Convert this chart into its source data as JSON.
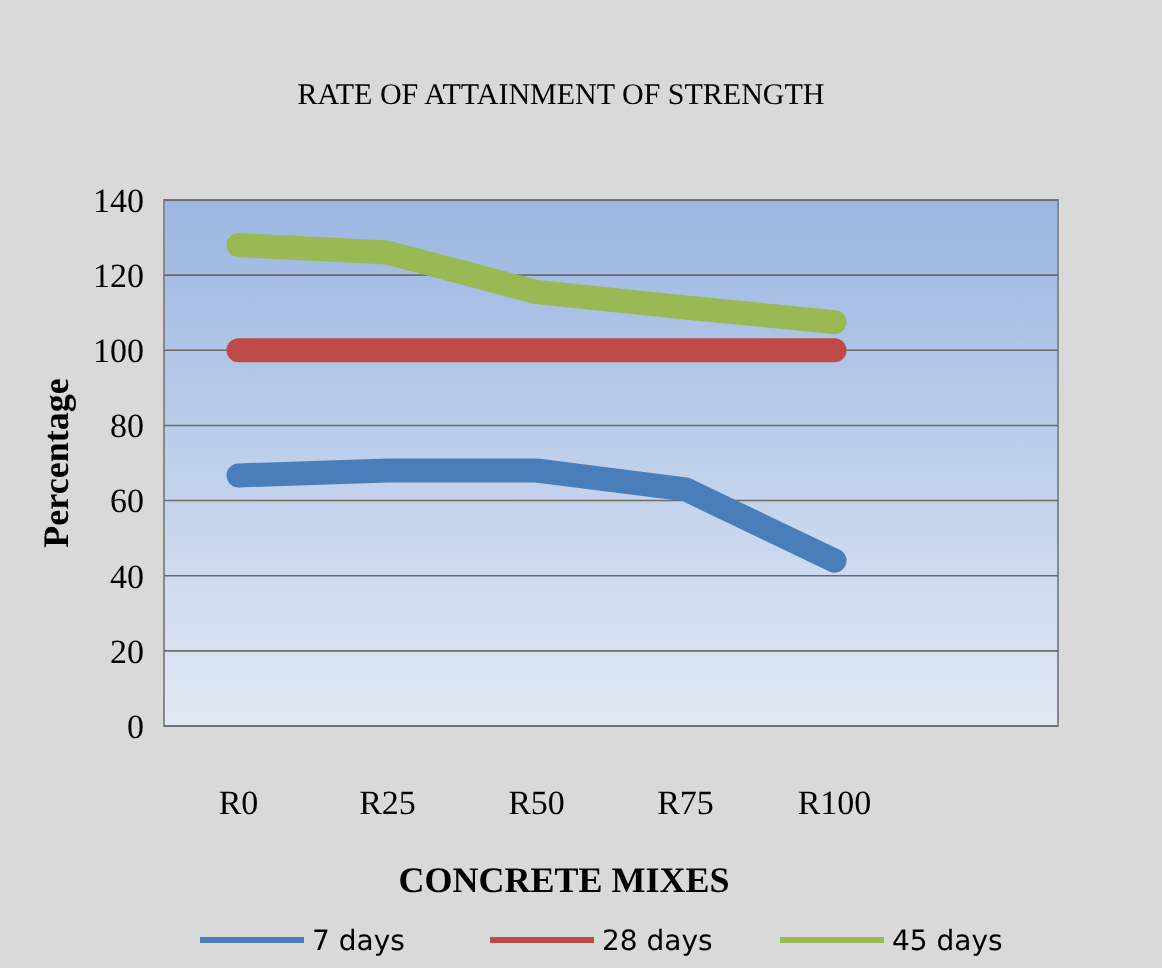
{
  "chart_data": {
    "type": "line",
    "title": "RATE OF ATTAINMENT OF STRENGTH",
    "xlabel": "CONCRETE MIXES",
    "ylabel": "Percentage",
    "categories": [
      "R0",
      "R25",
      "R50",
      "R75",
      "R100",
      null
    ],
    "series": [
      {
        "name": "7 days",
        "color": "#4a7ebb",
        "values": [
          66.7,
          68,
          68,
          63,
          44,
          null
        ]
      },
      {
        "name": "28 days",
        "color": "#be4b48",
        "values": [
          100,
          100,
          100,
          100,
          100,
          null
        ]
      },
      {
        "name": "45 days",
        "color": "#98b954",
        "values": [
          128,
          126,
          115.5,
          111.4,
          107.5,
          null
        ]
      }
    ],
    "ylim": [
      0,
      140
    ],
    "yticks": [
      0,
      20,
      40,
      60,
      80,
      100,
      120,
      140
    ],
    "grid": "y",
    "legend": "bottom",
    "marker": "none",
    "line_style": "solid"
  }
}
